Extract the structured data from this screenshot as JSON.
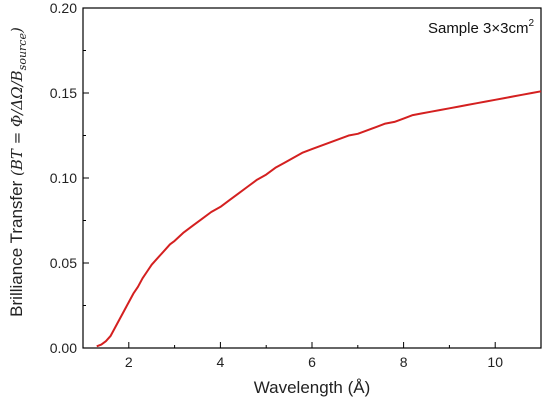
{
  "chart_data": {
    "type": "line",
    "xlabel": "Wavelength (Å)",
    "ylabel_text": "Brilliance Transfer",
    "ylabel_math": "(BT = Φ/ΔΩ/B",
    "ylabel_math_sub": "source",
    "ylabel_math_end": ")",
    "annotation": "Sample 3×3cm",
    "annotation_sup": "2",
    "xlim": [
      1.0,
      11.0
    ],
    "ylim": [
      0.0,
      0.2
    ],
    "xticks": [
      2,
      4,
      6,
      8,
      10
    ],
    "xtick_labels": [
      "2",
      "4",
      "6",
      "8",
      "10"
    ],
    "yticks": [
      0.0,
      0.05,
      0.1,
      0.15,
      0.2
    ],
    "ytick_labels": [
      "0.00",
      "0.05",
      "0.10",
      "0.15",
      "0.20"
    ],
    "grid": false,
    "series": [
      {
        "color": "#d42020",
        "x": [
          1.3,
          1.4,
          1.5,
          1.6,
          1.7,
          1.8,
          1.9,
          2.0,
          2.1,
          2.2,
          2.3,
          2.4,
          2.5,
          2.6,
          2.7,
          2.8,
          2.9,
          3.0,
          3.2,
          3.4,
          3.6,
          3.8,
          4.0,
          4.2,
          4.4,
          4.6,
          4.8,
          5.0,
          5.2,
          5.4,
          5.6,
          5.8,
          6.0,
          6.2,
          6.4,
          6.6,
          6.8,
          7.0,
          7.2,
          7.4,
          7.6,
          7.8,
          8.0,
          8.2,
          8.4,
          8.6,
          8.8,
          9.0,
          9.2,
          9.4,
          9.6,
          9.8,
          10.0,
          10.2,
          10.4,
          10.6,
          10.8,
          11.0
        ],
        "y": [
          0.001,
          0.002,
          0.004,
          0.007,
          0.012,
          0.017,
          0.022,
          0.027,
          0.032,
          0.036,
          0.041,
          0.045,
          0.049,
          0.052,
          0.055,
          0.058,
          0.061,
          0.063,
          0.068,
          0.072,
          0.076,
          0.08,
          0.083,
          0.087,
          0.091,
          0.095,
          0.099,
          0.102,
          0.106,
          0.109,
          0.112,
          0.115,
          0.117,
          0.119,
          0.121,
          0.123,
          0.125,
          0.126,
          0.128,
          0.13,
          0.132,
          0.133,
          0.135,
          0.137,
          0.138,
          0.139,
          0.14,
          0.141,
          0.142,
          0.143,
          0.144,
          0.145,
          0.146,
          0.147,
          0.148,
          0.149,
          0.15,
          0.151
        ]
      }
    ]
  }
}
